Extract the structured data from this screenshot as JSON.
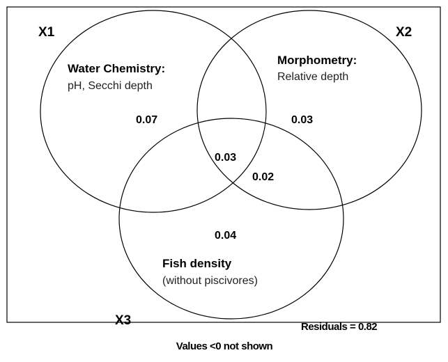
{
  "sets": [
    {
      "label": "X1",
      "title": "Water Chemistry:",
      "subtitle": "pH, Secchi depth"
    },
    {
      "label": "X2",
      "title": "Morphometry:",
      "subtitle": "Relative depth"
    },
    {
      "label": "X3",
      "title": "Fish density",
      "subtitle": "(without piscivores)"
    }
  ],
  "regions": {
    "x1_only": "0.07",
    "x2_only": "0.03",
    "x1_x2_x3": "0.03",
    "x2_x3": "0.02",
    "x3_only": "0.04"
  },
  "residuals": "Residuals = 0.82",
  "caption": "Values <0 not shown"
}
